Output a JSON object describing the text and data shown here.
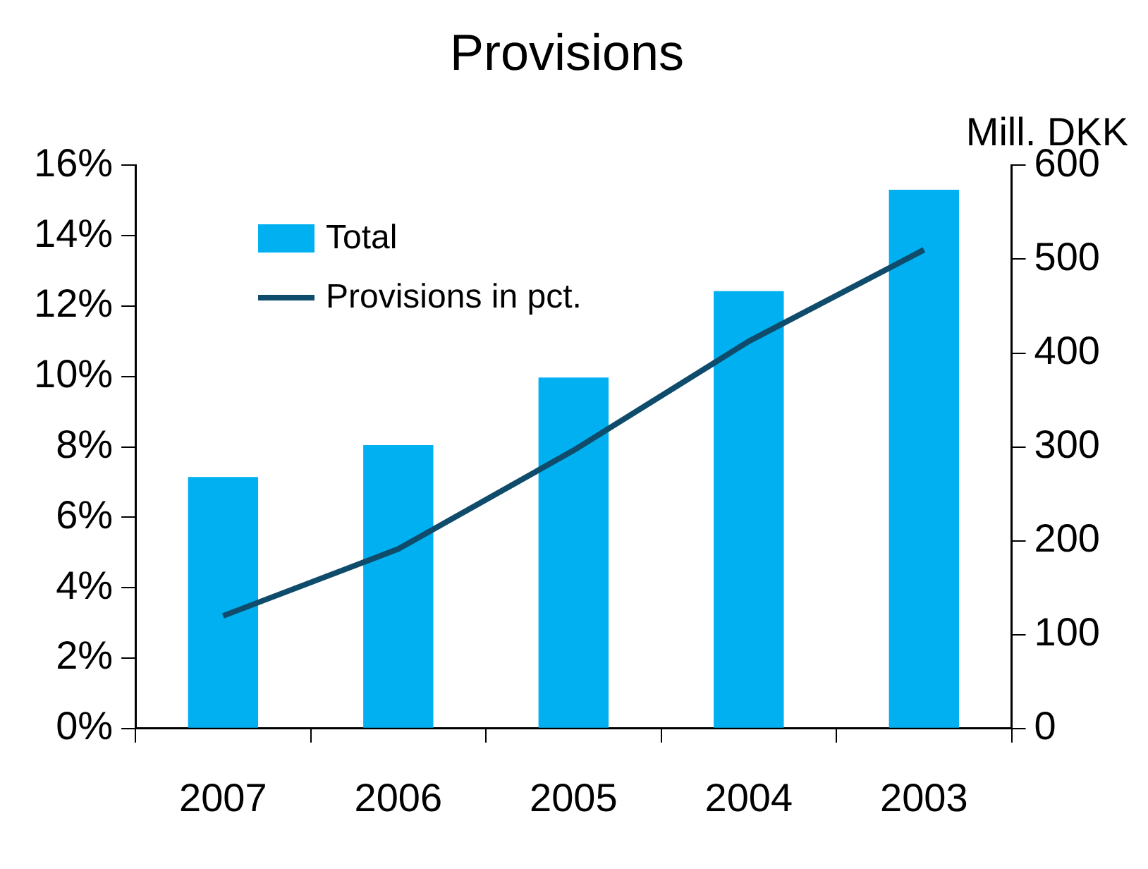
{
  "chart_data": {
    "type": "bar",
    "title": "Provisions",
    "y2label": "Mill. DKK",
    "categories": [
      "2007",
      "2006",
      "2005",
      "2004",
      "2003"
    ],
    "series": [
      {
        "name": "Total",
        "axis": "y2",
        "color": "#00b0f0",
        "values": [
          268,
          302,
          374,
          466,
          574
        ]
      },
      {
        "name": "Provisions in pct.",
        "type": "line",
        "axis": "y",
        "color": "#0f4c6b",
        "values": [
          3.2,
          5.1,
          7.9,
          11.0,
          13.6
        ]
      }
    ],
    "ylim": [
      0,
      16
    ],
    "yticks": [
      {
        "value": 0,
        "label": "0%"
      },
      {
        "value": 2,
        "label": "2%"
      },
      {
        "value": 4,
        "label": "4%"
      },
      {
        "value": 6,
        "label": "6%"
      },
      {
        "value": 8,
        "label": "8%"
      },
      {
        "value": 10,
        "label": "10%"
      },
      {
        "value": 12,
        "label": "12%"
      },
      {
        "value": 14,
        "label": "14%"
      },
      {
        "value": 16,
        "label": "16%"
      }
    ],
    "y2lim": [
      0,
      600
    ],
    "y2ticks": [
      0,
      100,
      200,
      300,
      400,
      500,
      600
    ],
    "grid": false,
    "legend": "top left",
    "marker": "none",
    "line_style": "solid"
  }
}
